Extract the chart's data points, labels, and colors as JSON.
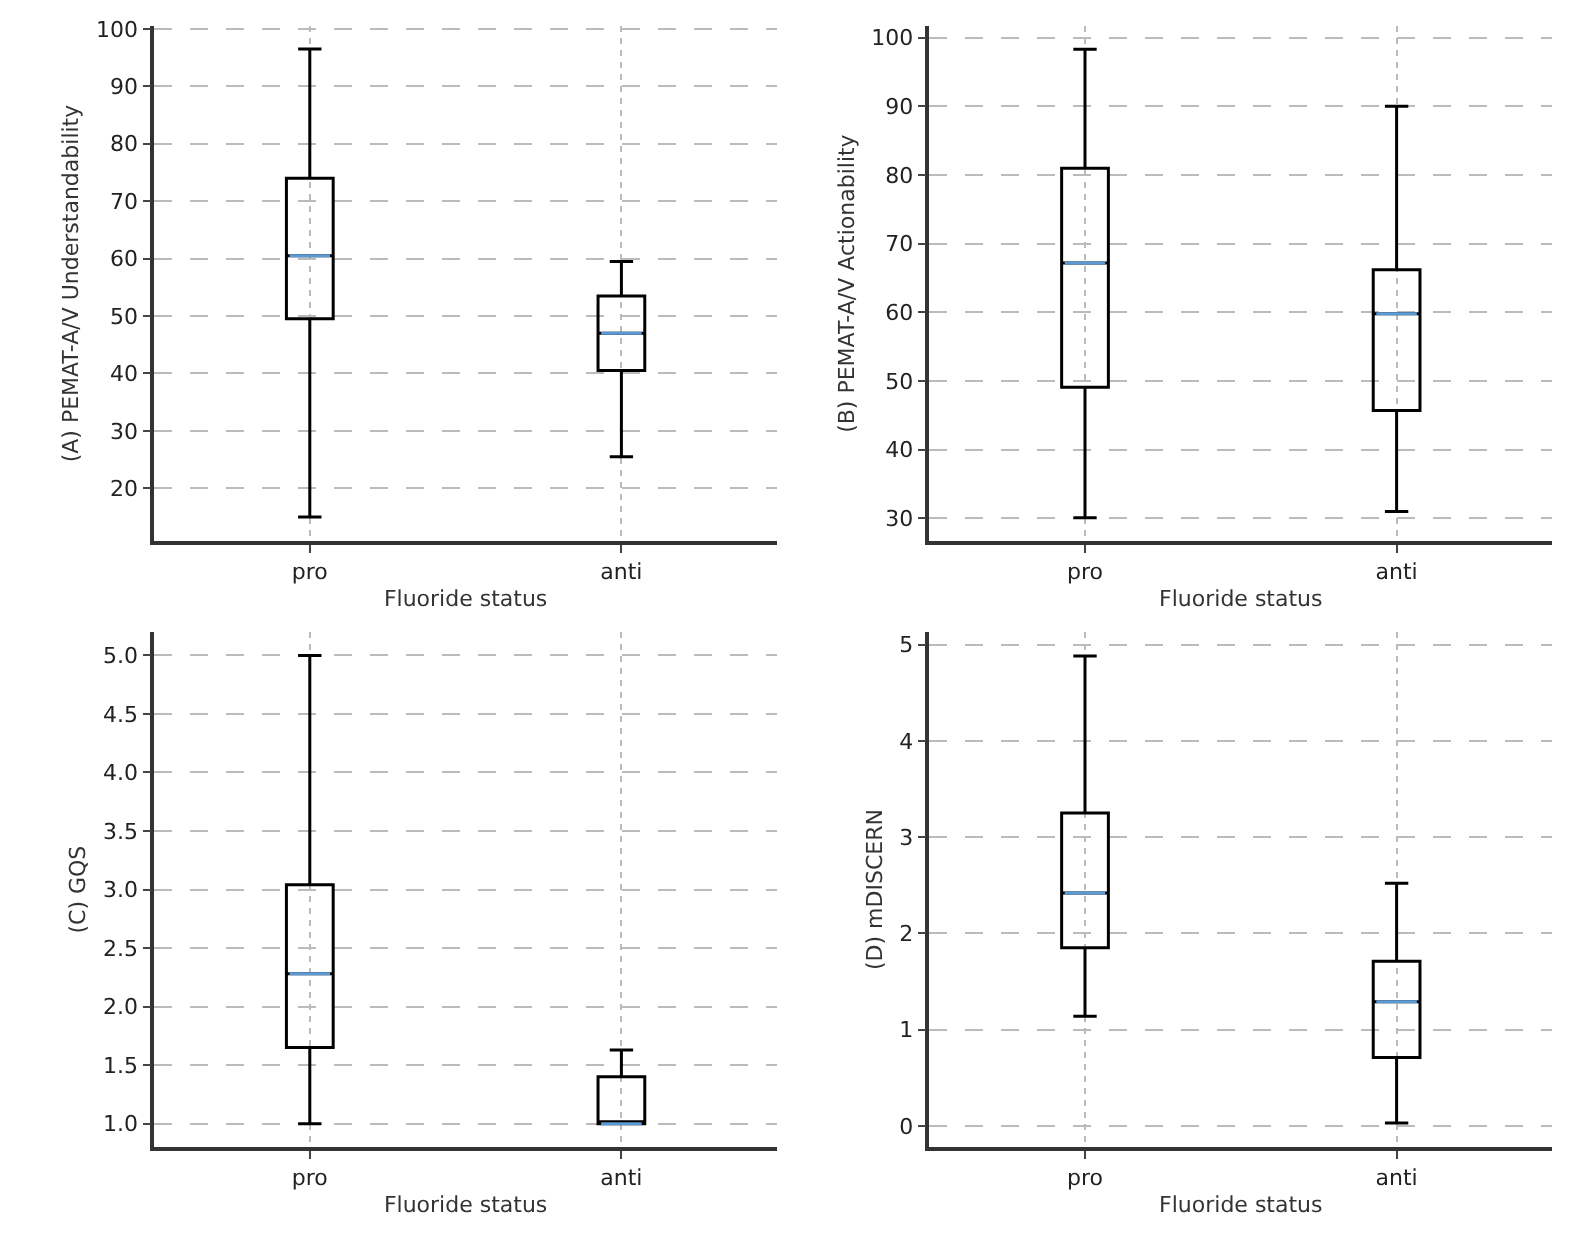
{
  "chart_data": [
    {
      "type": "box",
      "categories": [
        "pro",
        "anti"
      ],
      "xlabel": "Fluoride status",
      "ylabel": "(A) PEMAT-A/V Understandability",
      "ylim": [
        10.8,
        100.5
      ],
      "yticks": [
        20,
        30,
        40,
        50,
        60,
        70,
        80,
        90,
        100
      ],
      "grid": true,
      "series": [
        {
          "color": "#000000",
          "boxes": [
            {
              "low": 15,
              "q1": 49.5,
              "median": 60.5,
              "q3": 74,
              "high": 96.5
            },
            {
              "low": 25.5,
              "q1": 40.5,
              "median": 47,
              "q3": 53.5,
              "high": 59.5
            }
          ]
        }
      ]
    },
    {
      "type": "box",
      "categories": [
        "pro",
        "anti"
      ],
      "xlabel": "Fluoride status",
      "ylabel": "(B) PEMAT-A/V Actionability",
      "ylim": [
        26.7,
        101.7
      ],
      "yticks": [
        30,
        40,
        50,
        60,
        70,
        80,
        90,
        100
      ],
      "grid": true,
      "series": [
        {
          "color": "#000000",
          "boxes": [
            {
              "low": 30.1,
              "q1": 49.1,
              "median": 67.2,
              "q3": 81,
              "high": 98.3
            },
            {
              "low": 31,
              "q1": 45.7,
              "median": 59.8,
              "q3": 66.2,
              "high": 90
            }
          ]
        }
      ]
    },
    {
      "type": "box",
      "categories": [
        "pro",
        "anti"
      ],
      "xlabel": "Fluoride status",
      "ylabel": "(C) GQS",
      "ylim": [
        0.8,
        5.2
      ],
      "yticks": [
        {
          "value": 1.0,
          "label": "1.0"
        },
        1.5,
        {
          "value": 2.0,
          "label": "2.0"
        },
        2.5,
        {
          "value": 3.0,
          "label": "3.0"
        },
        3.5,
        {
          "value": 4.0,
          "label": "4.0"
        },
        4.5,
        {
          "value": 5.0,
          "label": "5.0"
        }
      ],
      "grid": true,
      "series": [
        {
          "color": "#000000",
          "boxes": [
            {
              "low": 1,
              "q1": 1.65,
              "median": 2.28,
              "q3": 3.04,
              "high": 5
            },
            {
              "low": 1,
              "q1": 1,
              "median": 1,
              "q3": 1.4,
              "high": 1.63
            }
          ]
        }
      ]
    },
    {
      "type": "box",
      "categories": [
        "pro",
        "anti"
      ],
      "xlabel": "Fluoride status",
      "ylabel": "(D) mDISCERN",
      "ylim": [
        -0.22,
        5.13
      ],
      "yticks": [
        0,
        1,
        2,
        3,
        4,
        5
      ],
      "grid": true,
      "series": [
        {
          "color": "#000000",
          "boxes": [
            {
              "low": 1.14,
              "q1": 1.85,
              "median": 2.42,
              "q3": 3.25,
              "high": 4.88
            },
            {
              "low": 0.03,
              "q1": 0.71,
              "median": 1.29,
              "q3": 1.71,
              "high": 2.52
            }
          ]
        }
      ]
    }
  ]
}
